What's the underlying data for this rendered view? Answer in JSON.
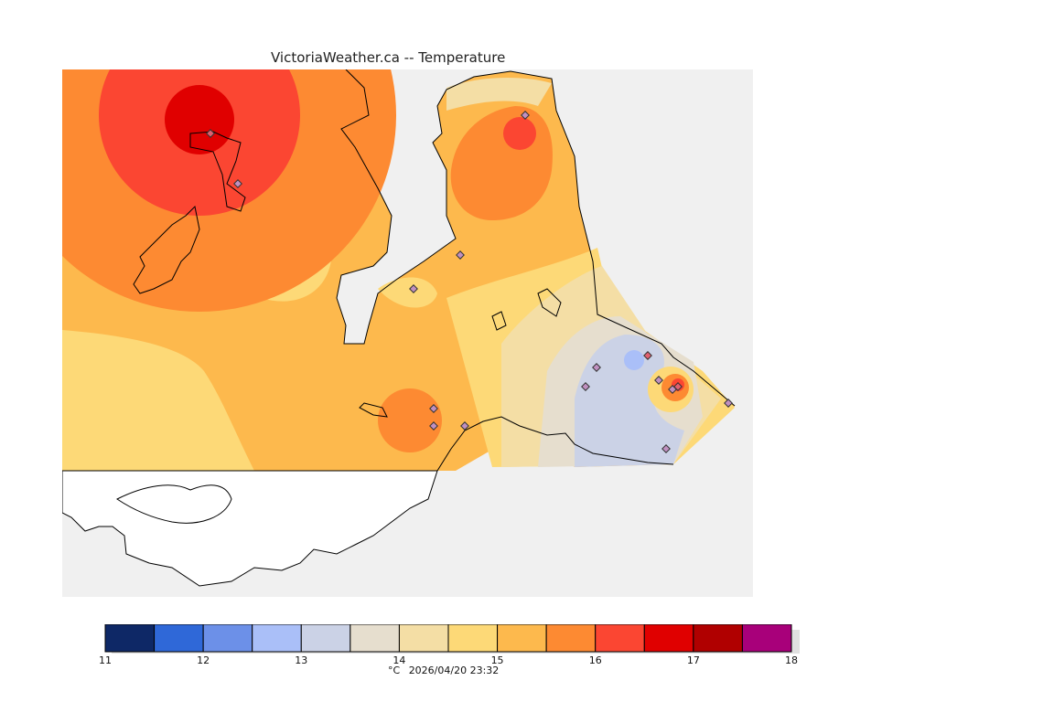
{
  "title": "VictoriaWeather.ca -- Temperature",
  "scale": {
    "bins": [
      {
        "from": 11,
        "to": 11.5,
        "color": "#0e2866"
      },
      {
        "from": 11.5,
        "to": 12,
        "color": "#2f68d8"
      },
      {
        "from": 12,
        "to": 12.5,
        "color": "#6c90e8"
      },
      {
        "from": 12.5,
        "to": 13,
        "color": "#aabff8"
      },
      {
        "from": 13,
        "to": 13.5,
        "color": "#cbd2e6"
      },
      {
        "from": 13.5,
        "to": 14,
        "color": "#e6dece"
      },
      {
        "from": 14,
        "to": 14.5,
        "color": "#f4dea5"
      },
      {
        "from": 14.5,
        "to": 15,
        "color": "#fdd977"
      },
      {
        "from": 15,
        "to": 15.5,
        "color": "#fdb94d"
      },
      {
        "from": 15.5,
        "to": 16,
        "color": "#fd8a32"
      },
      {
        "from": 16,
        "to": 16.5,
        "color": "#fb4632"
      },
      {
        "from": 16.5,
        "to": 17,
        "color": "#e00000"
      },
      {
        "from": 17,
        "to": 17.5,
        "color": "#b00000"
      },
      {
        "from": 17.5,
        "to": 18,
        "color": "#a8007a"
      }
    ],
    "ticks": [
      "11",
      "12",
      "13",
      "14",
      "15",
      "16",
      "17",
      "18"
    ]
  },
  "units": "°C",
  "timestamp": "2026/04/20 23:32"
}
